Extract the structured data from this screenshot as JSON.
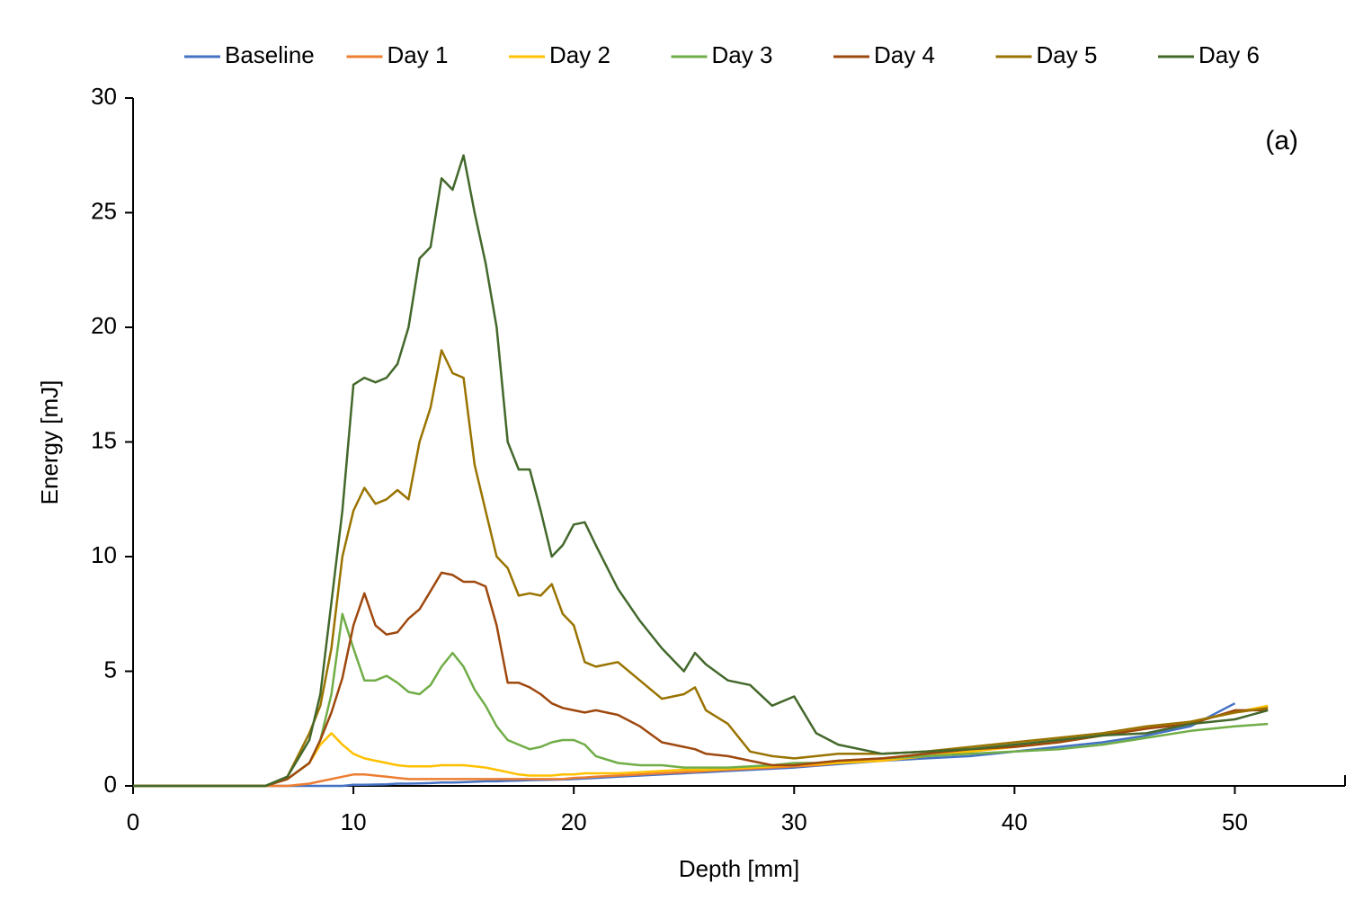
{
  "chart_data": {
    "type": "line",
    "xlabel": "Depth [mm]",
    "ylabel": "Energy [mJ]",
    "annotation": "(a)",
    "xlim": [
      0,
      55
    ],
    "xticks": [
      0,
      10,
      20,
      30,
      40,
      50
    ],
    "ylim": [
      0,
      30
    ],
    "yticks": [
      0,
      5,
      10,
      15,
      20,
      25,
      30
    ],
    "grid": false,
    "legend": "top",
    "x": [
      0,
      2,
      4,
      6,
      7,
      8,
      8.5,
      9,
      9.5,
      10,
      10.5,
      11,
      11.5,
      12,
      12.5,
      13,
      13.5,
      14,
      14.5,
      15,
      15.5,
      16,
      16.5,
      17,
      17.5,
      18,
      18.5,
      19,
      19.5,
      20,
      20.5,
      21,
      22,
      23,
      24,
      25,
      25.5,
      26,
      27,
      28,
      29,
      30,
      31,
      32,
      34,
      36,
      38,
      40,
      42,
      44,
      46,
      48,
      50,
      51.5
    ],
    "series": [
      {
        "name": "Baseline",
        "color": "#4472c4",
        "values": [
          0,
          0,
          0,
          0,
          0,
          0,
          0,
          0,
          0,
          0.05,
          0.05,
          0.06,
          0.07,
          0.1,
          0.1,
          0.11,
          0.12,
          0.15,
          0.15,
          0.16,
          0.18,
          0.2,
          0.2,
          0.22,
          0.23,
          0.25,
          0.26,
          0.27,
          0.28,
          0.3,
          0.32,
          0.35,
          0.4,
          0.45,
          0.5,
          0.55,
          0.58,
          0.6,
          0.65,
          0.7,
          0.75,
          0.8,
          0.88,
          0.95,
          1.1,
          1.2,
          1.3,
          1.5,
          1.7,
          1.9,
          2.2,
          2.6,
          3.6,
          null
        ]
      },
      {
        "name": "Day 1",
        "color": "#ed7d31",
        "values": [
          0,
          0,
          0,
          0,
          0,
          0.1,
          0.2,
          0.3,
          0.4,
          0.5,
          0.5,
          0.45,
          0.4,
          0.35,
          0.3,
          0.3,
          0.3,
          0.3,
          0.3,
          0.3,
          0.3,
          0.3,
          0.3,
          0.3,
          0.3,
          0.3,
          0.3,
          0.3,
          0.3,
          0.35,
          0.37,
          0.4,
          0.45,
          0.5,
          0.55,
          0.6,
          0.62,
          0.65,
          0.7,
          0.75,
          0.8,
          0.85,
          0.9,
          1,
          1.1,
          1.3,
          1.5,
          1.7,
          1.9,
          2.2,
          2.5,
          2.8,
          3.2,
          3.4
        ]
      },
      {
        "name": "Day 2",
        "color": "#ffc000",
        "values": [
          0,
          0,
          0,
          0,
          0.3,
          1,
          1.8,
          2.3,
          1.8,
          1.4,
          1.2,
          1.1,
          1,
          0.9,
          0.85,
          0.85,
          0.85,
          0.9,
          0.9,
          0.9,
          0.85,
          0.8,
          0.7,
          0.6,
          0.5,
          0.45,
          0.45,
          0.45,
          0.5,
          0.5,
          0.55,
          0.55,
          0.55,
          0.6,
          0.65,
          0.7,
          0.7,
          0.7,
          0.75,
          0.8,
          0.85,
          0.9,
          0.95,
          1,
          1.1,
          1.3,
          1.5,
          1.7,
          1.9,
          2.2,
          2.5,
          2.8,
          3.2,
          3.5
        ]
      },
      {
        "name": "Day 3",
        "color": "#70ad47",
        "values": [
          0,
          0,
          0,
          0,
          0.3,
          1,
          2,
          4,
          7.5,
          6,
          4.6,
          4.6,
          4.8,
          4.5,
          4.1,
          4,
          4.4,
          5.2,
          5.8,
          5.2,
          4.2,
          3.5,
          2.6,
          2,
          1.8,
          1.6,
          1.7,
          1.9,
          2,
          2,
          1.8,
          1.3,
          1,
          0.9,
          0.9,
          0.8,
          0.8,
          0.8,
          0.8,
          0.85,
          0.9,
          1,
          1,
          1.1,
          1.2,
          1.3,
          1.4,
          1.5,
          1.6,
          1.8,
          2.1,
          2.4,
          2.6,
          2.7
        ]
      },
      {
        "name": "Day 4",
        "color": "#9e480e",
        "values": [
          0,
          0,
          0,
          0,
          0.3,
          1,
          2,
          3.2,
          4.7,
          7,
          8.4,
          7,
          6.6,
          6.7,
          7.3,
          7.7,
          8.5,
          9.3,
          9.2,
          8.9,
          8.9,
          8.7,
          7,
          4.5,
          4.5,
          4.3,
          4,
          3.6,
          3.4,
          3.3,
          3.2,
          3.3,
          3.1,
          2.6,
          1.9,
          1.7,
          1.6,
          1.4,
          1.3,
          1.1,
          0.9,
          0.9,
          1,
          1.1,
          1.2,
          1.4,
          1.6,
          1.7,
          1.9,
          2.2,
          2.5,
          2.7,
          3.3,
          3.3
        ]
      },
      {
        "name": "Day 5",
        "color": "#997300",
        "values": [
          0,
          0,
          0,
          0,
          0.4,
          2.3,
          3.5,
          6,
          10,
          12,
          13,
          12.3,
          12.5,
          12.9,
          12.5,
          15,
          16.5,
          19,
          18,
          17.8,
          14,
          12,
          10,
          9.5,
          8.3,
          8.4,
          8.3,
          8.8,
          7.5,
          7,
          5.4,
          5.2,
          5.4,
          4.6,
          3.8,
          4,
          4.3,
          3.3,
          2.7,
          1.5,
          1.3,
          1.2,
          1.3,
          1.4,
          1.4,
          1.5,
          1.7,
          1.9,
          2.1,
          2.3,
          2.6,
          2.8,
          3.2,
          3.4
        ]
      },
      {
        "name": "Day 6",
        "color": "#43682b",
        "values": [
          0,
          0,
          0,
          0,
          0.4,
          2,
          4,
          8,
          12,
          17.5,
          17.8,
          17.6,
          17.8,
          18.4,
          20,
          23,
          23.5,
          26.5,
          26,
          27.5,
          25,
          22.8,
          20,
          15,
          13.8,
          13.8,
          12,
          10,
          10.5,
          11.4,
          11.5,
          10.5,
          8.6,
          7.2,
          6,
          5,
          5.8,
          5.3,
          4.6,
          4.4,
          3.5,
          3.9,
          2.3,
          1.8,
          1.4,
          1.5,
          1.6,
          1.8,
          2,
          2.2,
          2.3,
          2.7,
          2.9,
          3.3
        ]
      }
    ]
  }
}
